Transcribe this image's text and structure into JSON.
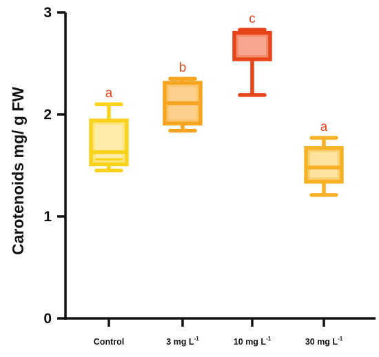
{
  "chart_data": {
    "type": "box",
    "ylabel": "Carotenoids mg/ g FW",
    "xlabel": "",
    "ylim": [
      0,
      3
    ],
    "yticks": [
      0,
      1,
      2,
      3
    ],
    "grid": false,
    "categories": [
      {
        "base": "Control",
        "sup": ""
      },
      {
        "base": "3 mg L",
        "sup": "-1"
      },
      {
        "base": "10 mg L",
        "sup": "-1"
      },
      {
        "base": "30 mg L",
        "sup": "-1"
      }
    ],
    "boxes": [
      {
        "min": 1.45,
        "q1": 1.51,
        "median": 1.63,
        "q3": 1.94,
        "max": 2.1,
        "mean": 1.56,
        "letter": "a",
        "stroke": "#f9d21e",
        "fill": "#fbe67e",
        "inner": "#fdeca8"
      },
      {
        "min": 1.84,
        "q1": 1.91,
        "median": 2.11,
        "q3": 2.31,
        "max": 2.35,
        "mean": null,
        "letter": "b",
        "stroke": "#f7a521",
        "fill": "#fbc46e",
        "inner": "#fcd08c"
      },
      {
        "min": 2.19,
        "q1": 2.54,
        "median": null,
        "q3": 2.8,
        "max": 2.83,
        "mean": null,
        "letter": "c",
        "stroke": "#e8441a",
        "fill": "#f48c6c",
        "inner": "#f7a58c"
      },
      {
        "min": 1.21,
        "q1": 1.34,
        "median": 1.48,
        "q3": 1.67,
        "max": 1.77,
        "mean": null,
        "letter": "a",
        "stroke": "#f7b125",
        "fill": "#fbcf74",
        "inner": "#fde39e"
      }
    ],
    "letter_color": "#e8441a"
  }
}
